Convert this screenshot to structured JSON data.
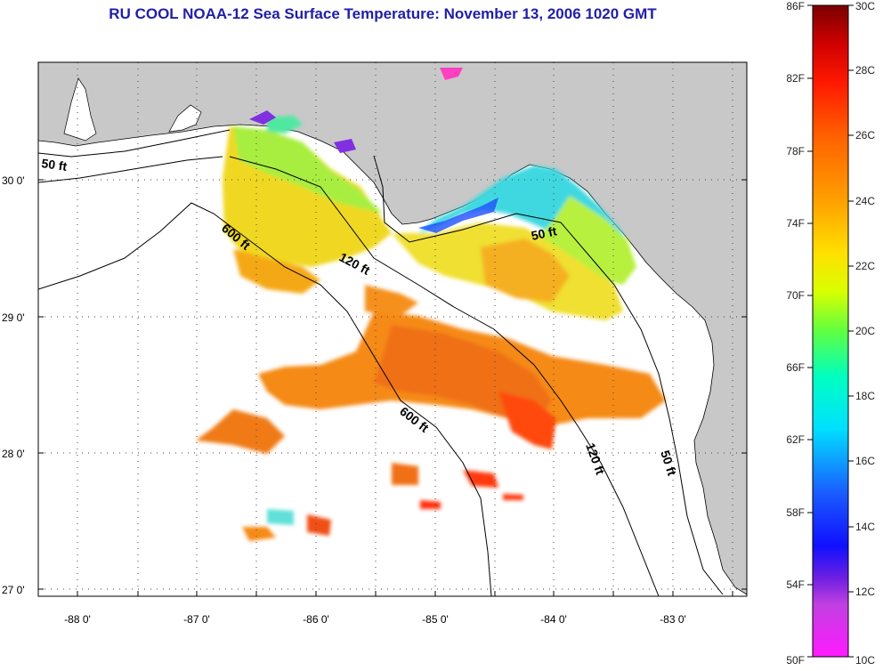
{
  "title": "RU COOL  NOAA-12  Sea Surface Temperature:  November 13, 2006 1020 GMT",
  "map": {
    "lat_labels": [
      "30 0'",
      "29 0'",
      "28 0'",
      "27 0'"
    ],
    "lon_labels": [
      "-88 0'",
      "-87 0'",
      "-86 0'",
      "-85 0'",
      "-84 0'",
      "-83 0'"
    ],
    "contours": [
      {
        "label": "50 ft"
      },
      {
        "label": "600 ft"
      },
      {
        "label": "120 ft"
      },
      {
        "label": "50 ft"
      },
      {
        "label": "600 ft"
      },
      {
        "label": "120 ft"
      },
      {
        "label": "50 ft"
      }
    ],
    "colors": {
      "land": "#c8c8c8",
      "water": "#ffffff",
      "grid": "#444444"
    }
  },
  "colorbar": {
    "fahrenheit": [
      "86F",
      "82F",
      "78F",
      "74F",
      "70F",
      "66F",
      "62F",
      "58F",
      "54F",
      "50F"
    ],
    "celsius": [
      "30C",
      "28C",
      "26C",
      "24C",
      "22C",
      "20C",
      "18C",
      "16C",
      "14C",
      "12C",
      "10C"
    ]
  }
}
